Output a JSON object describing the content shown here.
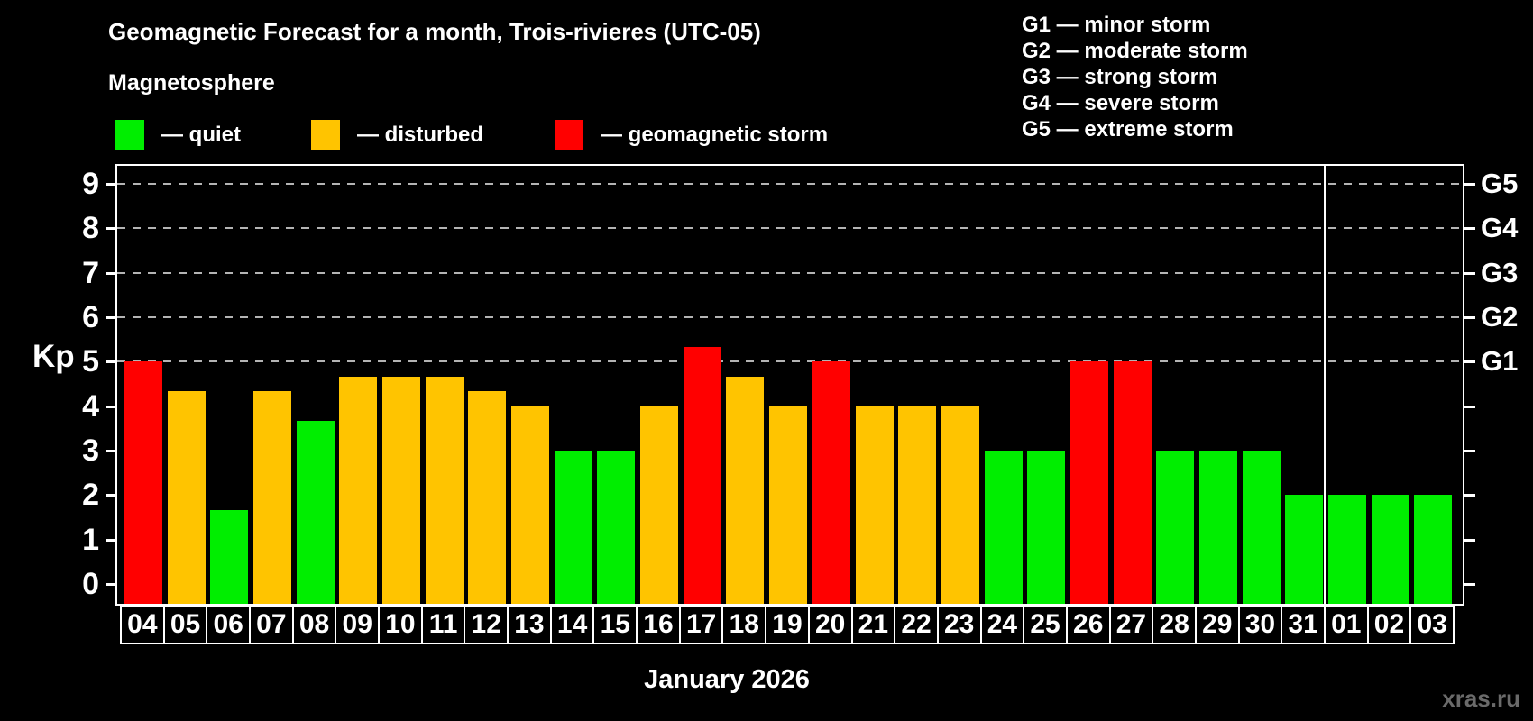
{
  "header": {
    "title": "Geomagnetic Forecast for a month, Trois-rivieres (UTC-05)",
    "subtitle": "Magnetosphere"
  },
  "legend": {
    "items": [
      {
        "status": "quiet",
        "label": "— quiet",
        "color": "#00ee00"
      },
      {
        "status": "disturbed",
        "label": "— disturbed",
        "color": "#ffc400"
      },
      {
        "status": "storm",
        "label": "— geomagnetic storm",
        "color": "#ff0000"
      }
    ]
  },
  "g_legend": {
    "lines": [
      "G1 — minor storm",
      "G2 — moderate storm",
      "G3 — strong storm",
      "G4 — severe storm",
      "G5 — extreme storm"
    ]
  },
  "axes": {
    "y_label": "Kp",
    "y_ticks": [
      0,
      1,
      2,
      3,
      4,
      5,
      6,
      7,
      8,
      9
    ],
    "right_scale": [
      {
        "label": "G1",
        "kp": 5
      },
      {
        "label": "G2",
        "kp": 6
      },
      {
        "label": "G3",
        "kp": 7
      },
      {
        "label": "G4",
        "kp": 8
      },
      {
        "label": "G5",
        "kp": 9
      }
    ],
    "x_axis_label": "January 2026"
  },
  "watermark": "xras.ru",
  "chart_data": {
    "type": "bar",
    "title": "Geomagnetic Forecast for a month, Trois-rivieres (UTC-05)",
    "xlabel": "January 2026",
    "ylabel": "Kp",
    "categories": [
      "04",
      "05",
      "06",
      "07",
      "08",
      "09",
      "10",
      "11",
      "12",
      "13",
      "14",
      "15",
      "16",
      "17",
      "18",
      "19",
      "20",
      "21",
      "22",
      "23",
      "24",
      "25",
      "26",
      "27",
      "28",
      "29",
      "30",
      "31",
      "01",
      "02",
      "03"
    ],
    "values": [
      5,
      4.33,
      1.67,
      4.33,
      3.67,
      4.67,
      4.67,
      4.67,
      4.33,
      4,
      3,
      3,
      4,
      5.33,
      4.67,
      4,
      5,
      4,
      4,
      4,
      3,
      3,
      5,
      5,
      3,
      3,
      3,
      2,
      2,
      2,
      2
    ],
    "statuses": [
      "storm",
      "disturbed",
      "quiet",
      "disturbed",
      "quiet",
      "disturbed",
      "disturbed",
      "disturbed",
      "disturbed",
      "disturbed",
      "quiet",
      "quiet",
      "disturbed",
      "storm",
      "disturbed",
      "disturbed",
      "storm",
      "disturbed",
      "disturbed",
      "disturbed",
      "quiet",
      "quiet",
      "storm",
      "storm",
      "quiet",
      "quiet",
      "quiet",
      "quiet",
      "quiet",
      "quiet",
      "quiet"
    ],
    "status_colors": {
      "quiet": "#00ee00",
      "disturbed": "#ffc400",
      "storm": "#ff0000"
    },
    "ylim": [
      -0.44,
      9.4
    ],
    "gridline_kp": [
      5,
      6,
      7,
      8,
      9
    ],
    "grid_color": "#b4b4b4",
    "month_separator_after": "31",
    "legend_position": "top"
  }
}
